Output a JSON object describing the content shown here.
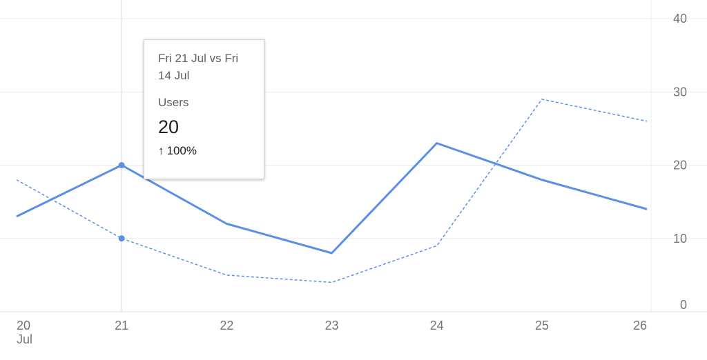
{
  "chart_data": {
    "type": "line",
    "categories": [
      "20",
      "21",
      "22",
      "23",
      "24",
      "25",
      "26"
    ],
    "month_label": "Jul",
    "ylim": [
      0,
      40
    ],
    "yticks": [
      0,
      10,
      20,
      30,
      40
    ],
    "grid": true,
    "series": [
      {
        "style": "solid",
        "color": "#5b8fe6",
        "values": [
          13,
          20,
          12,
          8,
          23,
          18,
          14
        ]
      },
      {
        "style": "dashed",
        "color": "#5b8fe6",
        "values": [
          18,
          10,
          5,
          4,
          9,
          29,
          26
        ]
      }
    ],
    "tooltip": {
      "title": "Fri 21 Jul vs Fri 14 Jul",
      "metric": "Users",
      "value": "20",
      "change_arrow": "↑",
      "change": "100%",
      "category_index": 1
    }
  }
}
